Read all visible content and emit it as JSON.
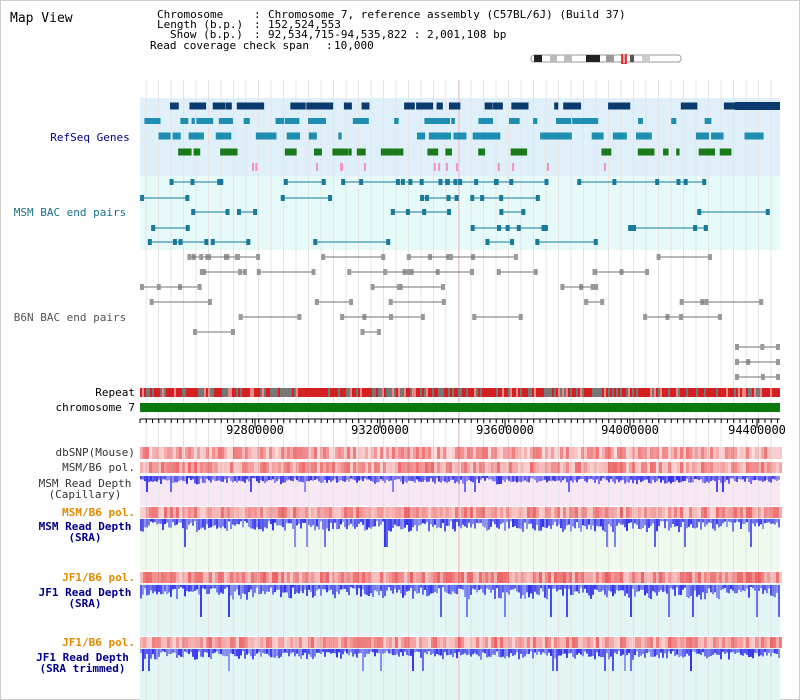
{
  "header": {
    "title": "Map View",
    "chromosome_key": "Chromosome",
    "chromosome_value": "Chromosome 7, reference assembly (C57BL/6J) (Build 37)",
    "length_key": "Length (b.p.)",
    "length_value": "152,524,553",
    "show_key": "Show (b.p.)",
    "show_value": "92,534,715-94,535,822 : 2,001,108 bp",
    "coverage_key": "Read coverage check span",
    "coverage_value": "10,000"
  },
  "tracks": {
    "refseq": "RefSeq Genes",
    "msm_bac": "MSM BAC end pairs",
    "b6n_bac": "B6N BAC end pairs",
    "repeat": "Repeat",
    "chromosome": "chromosome 7",
    "dbsnp": "dbSNP(Mouse)",
    "msm_pol_1": "MSM/B6 pol.",
    "msm_depth_cap_1": "MSM Read Depth",
    "msm_depth_cap_2": "(Capillary)",
    "msm_pol_2": "MSM/B6 pol.",
    "msm_depth_sra_1": "MSM Read Depth",
    "msm_depth_sra_2": "(SRA)",
    "jf1_pol_1": "JF1/B6 pol.",
    "jf1_depth_sra_1": "JF1 Read Depth",
    "jf1_depth_sra_2": "(SRA)",
    "jf1_pol_2": "JF1/B6 pol.",
    "jf1_depth_trim_1": "JF1 Read Depth",
    "jf1_depth_trim_2": "(SRA trimmed)"
  },
  "axis": {
    "ticks": [
      "92800000",
      "93200000",
      "93600000",
      "94000000",
      "94400000"
    ]
  },
  "colors": {
    "refseq_bg": "#dff0fa",
    "msm_bac_bg": "#e6fafa",
    "gene_dark": "#0a3a6e",
    "gene_mid": "#1e8fb0",
    "gene_green": "#1a7a1a",
    "msm_bac": "#187a9a",
    "b6n_bac": "#707070",
    "repeat_red": "#d42020",
    "chrom_green": "#0a7a0a",
    "depth_blue": "#3a3aee",
    "orange_label": "#e08a00",
    "navy_label": "#00008b",
    "teal_label": "#1a6e8a"
  }
}
